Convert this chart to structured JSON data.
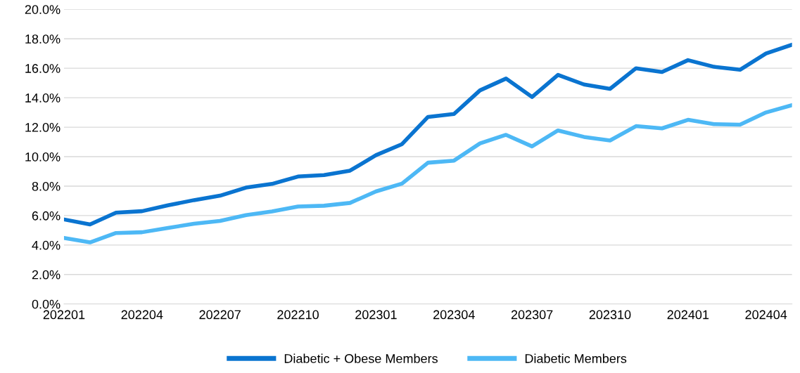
{
  "chart_data": {
    "type": "line",
    "categories": [
      "202201",
      null,
      null,
      "202204",
      null,
      null,
      "202207",
      null,
      null,
      "202210",
      null,
      null,
      "202301",
      null,
      null,
      "202304",
      null,
      null,
      "202307",
      null,
      null,
      "202310",
      null,
      null,
      "202401",
      null,
      null,
      "202404",
      null
    ],
    "series": [
      {
        "name": "Diabetic + Obese Members",
        "color": "#0a74d0",
        "values": [
          5.74,
          5.4,
          6.2,
          6.3,
          6.7,
          7.05,
          7.35,
          7.9,
          8.15,
          8.65,
          8.75,
          9.05,
          10.1,
          10.85,
          12.7,
          12.9,
          14.5,
          15.3,
          14.05,
          15.55,
          14.9,
          14.6,
          16.0,
          15.75,
          16.55,
          16.1,
          15.9,
          17.0,
          17.6
        ]
      },
      {
        "name": "Diabetic Members",
        "color": "#4db8f5",
        "values": [
          4.48,
          4.18,
          4.82,
          4.87,
          5.16,
          5.45,
          5.64,
          6.03,
          6.28,
          6.62,
          6.67,
          6.86,
          7.64,
          8.17,
          9.59,
          9.73,
          10.9,
          11.48,
          10.7,
          11.78,
          11.34,
          11.1,
          12.07,
          11.92,
          12.5,
          12.21,
          12.17,
          13.0,
          13.5
        ]
      }
    ],
    "ylim": [
      0,
      20
    ],
    "yticks": [
      {
        "value": 0,
        "label": "0.0%"
      },
      {
        "value": 2,
        "label": "2.0%"
      },
      {
        "value": 4,
        "label": "4.0%"
      },
      {
        "value": 6,
        "label": "6.0%"
      },
      {
        "value": 8,
        "label": "8.0%"
      },
      {
        "value": 10,
        "label": "10.0%"
      },
      {
        "value": 12,
        "label": "12.0%"
      },
      {
        "value": 14,
        "label": "14.0%"
      },
      {
        "value": 16,
        "label": "16.0%"
      },
      {
        "value": 18,
        "label": "18.0%"
      },
      {
        "value": 20,
        "label": "20.0%"
      }
    ],
    "grid": "y",
    "legend": "bottom",
    "marker": "none",
    "line_style": "solid"
  }
}
